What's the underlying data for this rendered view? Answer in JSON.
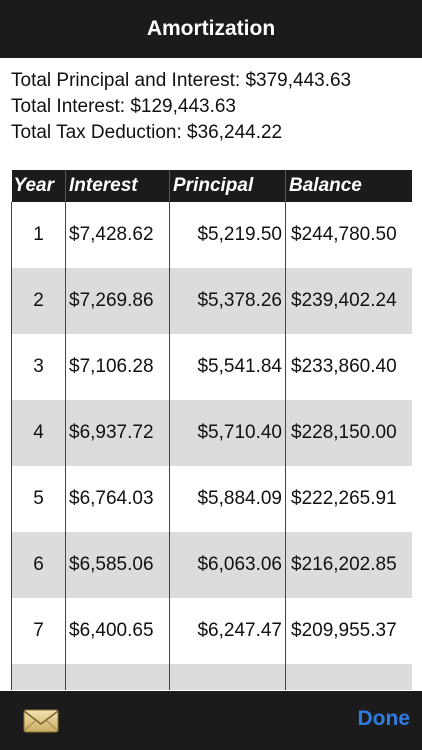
{
  "navbar": {
    "title": "Amortization"
  },
  "summary": {
    "total_principal_interest": "Total Principal and Interest: $379,443.63",
    "total_interest": "Total Interest: $129,443.63",
    "total_tax_deduction": "Total Tax Deduction: $36,244.22"
  },
  "table": {
    "headers": [
      "Year",
      "Interest",
      "Principal",
      "Balance"
    ],
    "rows": [
      [
        "1",
        "$7,428.62",
        "$5,219.50",
        "$244,780.50"
      ],
      [
        "2",
        "$7,269.86",
        "$5,378.26",
        "$239,402.24"
      ],
      [
        "3",
        "$7,106.28",
        "$5,541.84",
        "$233,860.40"
      ],
      [
        "4",
        "$6,937.72",
        "$5,710.40",
        "$228,150.00"
      ],
      [
        "5",
        "$6,764.03",
        "$5,884.09",
        "$222,265.91"
      ],
      [
        "6",
        "$6,585.06",
        "$6,063.06",
        "$216,202.85"
      ],
      [
        "7",
        "$6,400.65",
        "$6,247.47",
        "$209,955.37"
      ],
      [
        "",
        "",
        "",
        ""
      ]
    ]
  },
  "toolbar": {
    "mail_icon": "envelope-icon",
    "done_label": "Done"
  },
  "colors": {
    "bar_background": "#1b1b1b",
    "accent": "#2f7be0",
    "row_alt": "#dcdcdc"
  }
}
